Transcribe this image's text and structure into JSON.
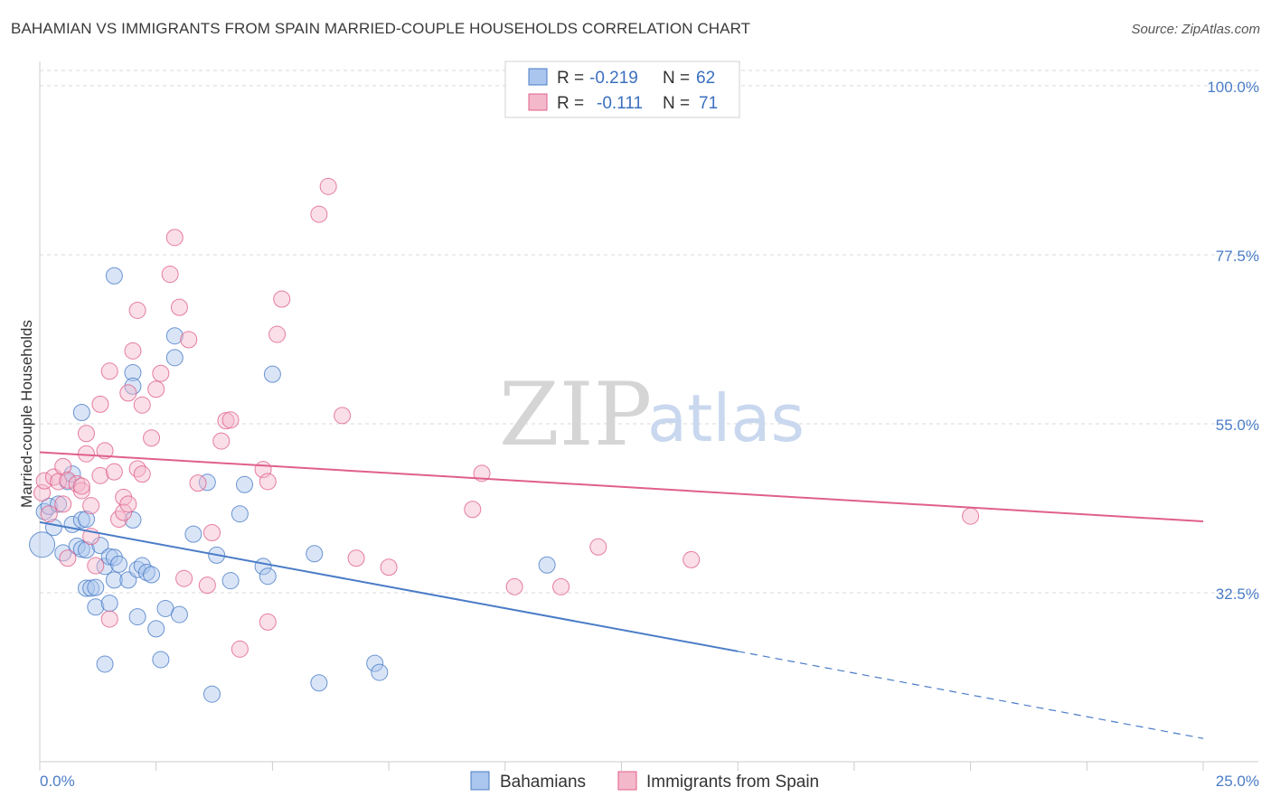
{
  "title": "BAHAMIAN VS IMMIGRANTS FROM SPAIN MARRIED-COUPLE HOUSEHOLDS CORRELATION CHART",
  "source": "Source: ZipAtlas.com",
  "watermark": {
    "zip": "ZIP",
    "atlas": "atlas"
  },
  "colors": {
    "blue": "#4a7cc7",
    "blue_fill": "#aac6ee",
    "pink": "#e0608a",
    "pink_fill": "#f4b8cb",
    "grid": "#d9d9d9"
  },
  "legend": {
    "rows": [
      {
        "r_label": "R =",
        "r_value": "-0.219",
        "n_label": "N =",
        "n_value": "62"
      },
      {
        "r_label": "R =",
        "r_value": "-0.111",
        "n_label": "N =",
        "n_value": "71"
      }
    ]
  },
  "chart_data": {
    "type": "scatter",
    "ylabel": "Married-couple Households",
    "xlim": [
      0,
      25
    ],
    "ylim": [
      10,
      103
    ],
    "x_tick_labels": [
      "0.0%",
      "25.0%"
    ],
    "y_ticks": [
      100.0,
      77.5,
      55.0,
      32.5
    ],
    "y_tick_labels": [
      "100.0%",
      "77.5%",
      "55.0%",
      "32.5%"
    ],
    "grid": true,
    "series": [
      {
        "name": "Bahamians",
        "color": "#4a7cc7",
        "points": [
          [
            0.05,
            38.9
          ],
          [
            0.1,
            43.3
          ],
          [
            0.2,
            44.0
          ],
          [
            0.3,
            41.2
          ],
          [
            0.4,
            44.3
          ],
          [
            0.5,
            37.8
          ],
          [
            0.6,
            47.3
          ],
          [
            0.7,
            48.3
          ],
          [
            0.7,
            41.6
          ],
          [
            0.8,
            38.7
          ],
          [
            0.9,
            42.2
          ],
          [
            0.9,
            38.3
          ],
          [
            0.9,
            56.5
          ],
          [
            1.0,
            38.2
          ],
          [
            1.0,
            42.3
          ],
          [
            1.0,
            33.1
          ],
          [
            1.1,
            33.1
          ],
          [
            1.2,
            30.6
          ],
          [
            1.2,
            33.2
          ],
          [
            1.3,
            38.8
          ],
          [
            1.4,
            36.0
          ],
          [
            1.4,
            23.0
          ],
          [
            1.5,
            37.3
          ],
          [
            1.5,
            31.1
          ],
          [
            1.6,
            37.2
          ],
          [
            1.6,
            74.7
          ],
          [
            1.6,
            34.2
          ],
          [
            1.7,
            36.3
          ],
          [
            1.9,
            34.2
          ],
          [
            2.0,
            42.2
          ],
          [
            2.0,
            61.8
          ],
          [
            2.0,
            60.0
          ],
          [
            2.1,
            29.3
          ],
          [
            2.1,
            35.6
          ],
          [
            2.2,
            36.1
          ],
          [
            2.3,
            35.2
          ],
          [
            2.4,
            34.9
          ],
          [
            2.5,
            27.7
          ],
          [
            2.6,
            23.6
          ],
          [
            2.7,
            30.4
          ],
          [
            2.9,
            63.8
          ],
          [
            2.9,
            66.7
          ],
          [
            3.0,
            29.6
          ],
          [
            3.3,
            40.3
          ],
          [
            3.6,
            47.2
          ],
          [
            3.7,
            19.0
          ],
          [
            3.8,
            37.5
          ],
          [
            4.1,
            34.1
          ],
          [
            4.3,
            43.0
          ],
          [
            4.4,
            46.9
          ],
          [
            4.8,
            36.0
          ],
          [
            4.9,
            34.7
          ],
          [
            5.0,
            61.6
          ],
          [
            5.9,
            37.7
          ],
          [
            6.0,
            20.5
          ],
          [
            7.2,
            23.1
          ],
          [
            7.3,
            21.9
          ],
          [
            10.9,
            36.2
          ]
        ]
      },
      {
        "name": "Immigrants from Spain",
        "color": "#e0608a",
        "points": [
          [
            0.05,
            45.8
          ],
          [
            0.1,
            47.4
          ],
          [
            0.2,
            43.0
          ],
          [
            0.3,
            47.9
          ],
          [
            0.4,
            47.3
          ],
          [
            0.5,
            49.3
          ],
          [
            0.5,
            44.3
          ],
          [
            0.6,
            37.1
          ],
          [
            0.6,
            47.5
          ],
          [
            0.8,
            47.0
          ],
          [
            0.9,
            46.1
          ],
          [
            0.9,
            46.7
          ],
          [
            1.0,
            51.0
          ],
          [
            1.0,
            53.7
          ],
          [
            1.1,
            44.1
          ],
          [
            1.1,
            40.0
          ],
          [
            1.2,
            36.1
          ],
          [
            1.3,
            48.1
          ],
          [
            1.3,
            57.6
          ],
          [
            1.4,
            51.4
          ],
          [
            1.5,
            62.0
          ],
          [
            1.5,
            29.0
          ],
          [
            1.6,
            48.6
          ],
          [
            1.7,
            42.3
          ],
          [
            1.8,
            45.2
          ],
          [
            1.8,
            43.2
          ],
          [
            1.9,
            44.3
          ],
          [
            1.9,
            59.1
          ],
          [
            2.0,
            64.7
          ],
          [
            2.1,
            70.1
          ],
          [
            2.1,
            49.0
          ],
          [
            2.2,
            48.3
          ],
          [
            2.2,
            57.5
          ],
          [
            2.4,
            53.1
          ],
          [
            2.5,
            59.6
          ],
          [
            2.6,
            61.7
          ],
          [
            2.8,
            74.9
          ],
          [
            2.9,
            79.8
          ],
          [
            3.0,
            70.5
          ],
          [
            3.1,
            34.4
          ],
          [
            3.2,
            66.2
          ],
          [
            3.4,
            47.1
          ],
          [
            3.6,
            33.5
          ],
          [
            3.7,
            40.5
          ],
          [
            3.9,
            52.7
          ],
          [
            4.0,
            55.4
          ],
          [
            4.1,
            55.5
          ],
          [
            4.3,
            25.0
          ],
          [
            4.8,
            48.9
          ],
          [
            4.9,
            28.6
          ],
          [
            4.9,
            47.3
          ],
          [
            5.1,
            66.9
          ],
          [
            5.2,
            71.6
          ],
          [
            6.0,
            82.9
          ],
          [
            6.2,
            86.6
          ],
          [
            6.5,
            56.1
          ],
          [
            6.8,
            37.1
          ],
          [
            7.5,
            35.9
          ],
          [
            9.3,
            43.6
          ],
          [
            9.5,
            48.4
          ],
          [
            10.2,
            33.3
          ],
          [
            11.2,
            33.3
          ],
          [
            12.0,
            38.6
          ],
          [
            14.0,
            36.9
          ],
          [
            20.0,
            42.7
          ]
        ]
      }
    ],
    "trend_lines": [
      {
        "series": "Bahamians",
        "from": [
          0,
          41.9
        ],
        "to_solid": [
          15,
          24.7
        ],
        "to_dashed": [
          25,
          13.1
        ]
      },
      {
        "series": "Immigrants from Spain",
        "from": [
          0,
          51.2
        ],
        "to": [
          25,
          42.0
        ]
      }
    ]
  }
}
